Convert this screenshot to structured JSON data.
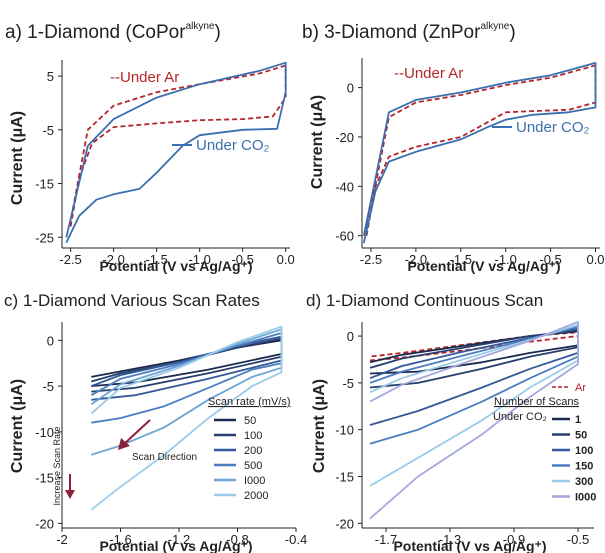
{
  "figure": {
    "colors": {
      "ar": "#b5252b",
      "co2": "#3a6fb0",
      "axis": "#222222",
      "text": "#222222",
      "arrow": "#8e1f3a"
    }
  },
  "chart_data": [
    {
      "id": "a",
      "type": "line",
      "title_prefix": "a) 1-Diamond (CoPor",
      "title_sup": "alkyne",
      "title_suffix": ")",
      "xlabel": "Potential (V vs Ag/Ag⁺)",
      "ylabel": "Current (μA)",
      "xlim": [
        -2.6,
        0.05
      ],
      "ylim": [
        -27,
        8
      ],
      "x_ticks": [
        -2.5,
        -2.0,
        -1.5,
        -1.0,
        -0.5,
        0.0
      ],
      "x_tick_labels": [
        "-2.5",
        "-2.0",
        "-1.5",
        "-1.0",
        "-0.5",
        "0.0"
      ],
      "y_ticks": [
        5,
        -5,
        -15,
        -25
      ],
      "y_tick_labels": [
        "5",
        "-5",
        "-15",
        "-25"
      ],
      "series": [
        {
          "name": "--Under Ar",
          "style": "dashed",
          "color": "#b5252b",
          "x": [
            -2.5,
            -2.4,
            -2.25,
            -2.0,
            -1.5,
            -1.0,
            -0.5,
            -0.15,
            0.0,
            0.0,
            -0.3,
            -1.0,
            -1.5,
            -2.0,
            -2.3,
            -2.5
          ],
          "y": [
            -23,
            -14,
            -7.5,
            -4.5,
            -3.8,
            -3.2,
            -3.0,
            -2.5,
            1,
            7,
            5.5,
            3.5,
            2,
            -0.5,
            -5,
            -22
          ]
        },
        {
          "name": "Under CO₂",
          "style": "solid",
          "color": "#3a6fb0",
          "x": [
            -2.55,
            -2.4,
            -2.2,
            -2.0,
            -1.7,
            -1.5,
            -1.2,
            -1.0,
            -0.5,
            -0.1,
            0.0,
            0.0,
            -0.3,
            -1.0,
            -1.5,
            -2.0,
            -2.3,
            -2.55
          ],
          "y": [
            -26,
            -21,
            -18,
            -17,
            -16,
            -13,
            -8,
            -6,
            -5,
            -4.8,
            2,
            7.5,
            6,
            3.5,
            1,
            -3,
            -8,
            -25
          ]
        }
      ],
      "legend": [
        {
          "label": "--Under Ar",
          "placement": "top-left"
        },
        {
          "label": "Under CO₂",
          "placement": "bottom-right"
        }
      ]
    },
    {
      "id": "b",
      "type": "line",
      "title_prefix": "b) 3-Diamond (ZnPor",
      "title_sup": "alkyne",
      "title_suffix": ")",
      "xlabel": "Potential (V vs Ag/Ag⁺)",
      "ylabel": "Current (μA)",
      "xlim": [
        -2.6,
        0.05
      ],
      "ylim": [
        -65,
        12
      ],
      "x_ticks": [
        -2.5,
        -2.0,
        -1.5,
        -1.0,
        -0.5,
        0.0
      ],
      "x_tick_labels": [
        "-2.5",
        "-2.0",
        "-1.5",
        "-1.0",
        "-0.5",
        "0.0"
      ],
      "y_ticks": [
        0,
        -20,
        -40,
        -60
      ],
      "y_tick_labels": [
        "0",
        "-20",
        "-40",
        "-60"
      ],
      "series": [
        {
          "name": "--Under Ar",
          "style": "dashed",
          "color": "#b5252b",
          "x": [
            -2.55,
            -2.45,
            -2.3,
            -2.0,
            -1.5,
            -1.2,
            -1.0,
            -0.7,
            -0.3,
            0.0,
            0.0,
            -0.5,
            -1.0,
            -1.5,
            -2.0,
            -2.3,
            -2.55
          ],
          "y": [
            -60,
            -40,
            -28,
            -24,
            -20,
            -14,
            -10,
            -9.5,
            -9,
            -6,
            9,
            4,
            1,
            -3,
            -6,
            -12,
            -58
          ]
        },
        {
          "name": "Under CO₂",
          "style": "solid",
          "color": "#3a6fb0",
          "x": [
            -2.58,
            -2.45,
            -2.3,
            -2.0,
            -1.5,
            -1.2,
            -1.0,
            -0.7,
            -0.3,
            0.0,
            0.0,
            -0.5,
            -1.0,
            -1.5,
            -2.0,
            -2.3,
            -2.58
          ],
          "y": [
            -63,
            -42,
            -30,
            -26,
            -21,
            -16,
            -13,
            -11,
            -10,
            -8,
            10,
            5,
            2,
            -2,
            -5,
            -10,
            -60
          ]
        }
      ],
      "legend": [
        {
          "label": "--Under Ar",
          "placement": "top-left"
        },
        {
          "label": "Under CO₂",
          "placement": "right"
        }
      ]
    },
    {
      "id": "c",
      "type": "line",
      "title": "c) 1-Diamond Various Scan Rates",
      "xlabel": "Potential (V vs Ag/Ag⁺)",
      "ylabel": "Current (μA)",
      "xlim": [
        -2.0,
        -0.4
      ],
      "ylim": [
        -20.5,
        2
      ],
      "x_ticks": [
        -2.0,
        -1.6,
        -1.2,
        -0.8,
        -0.4
      ],
      "x_tick_labels": [
        "-2",
        "-1.6",
        "-1.2",
        "-0.8",
        "-0.4"
      ],
      "y_ticks": [
        0,
        -5,
        -10,
        -15,
        -20
      ],
      "y_tick_labels": [
        "0",
        "-5",
        "-10",
        "-15",
        "-20"
      ],
      "legend_title": "Scan rate (mV/s)",
      "annotations": [
        "Increase Scan Rate",
        "Scan Direction"
      ],
      "series": [
        {
          "name": "50",
          "color": "#1a2a4e",
          "x": [
            -1.8,
            -1.5,
            -1.0,
            -0.5,
            -0.5,
            -0.8,
            -1.2,
            -1.6,
            -1.8
          ],
          "y": [
            -5,
            -4.6,
            -3.2,
            -1.5,
            0,
            -0.8,
            -2.2,
            -3.4,
            -4
          ]
        },
        {
          "name": "100",
          "color": "#263f6e",
          "x": [
            -1.8,
            -1.5,
            -1.0,
            -0.5,
            -0.5,
            -0.8,
            -1.2,
            -1.6,
            -1.8
          ],
          "y": [
            -5.6,
            -5.2,
            -3.6,
            -1.8,
            0.2,
            -0.8,
            -2.4,
            -3.6,
            -4.5
          ]
        },
        {
          "name": "200",
          "color": "#34599a",
          "x": [
            -1.8,
            -1.5,
            -1.0,
            -0.5,
            -0.5,
            -0.8,
            -1.2,
            -1.6,
            -1.8
          ],
          "y": [
            -6.5,
            -6.0,
            -4.2,
            -2.2,
            0.4,
            -0.6,
            -2.4,
            -3.8,
            -5
          ]
        },
        {
          "name": "500",
          "color": "#4a7ec1",
          "x": [
            -1.8,
            -1.6,
            -1.3,
            -1.0,
            -0.7,
            -0.5,
            -0.5,
            -0.8,
            -1.2,
            -1.6,
            -1.8
          ],
          "y": [
            -9,
            -8.5,
            -7.2,
            -5.2,
            -3.2,
            -2.5,
            0.8,
            -0.6,
            -2.6,
            -4.2,
            -6
          ]
        },
        {
          "name": "I000",
          "color": "#6da5d6",
          "x": [
            -1.8,
            -1.6,
            -1.3,
            -1.0,
            -0.7,
            -0.5,
            -0.5,
            -0.8,
            -1.2,
            -1.6,
            -1.8
          ],
          "y": [
            -12.5,
            -11.5,
            -9.5,
            -6.5,
            -4,
            -3,
            1.2,
            -0.4,
            -2.8,
            -4.8,
            -7
          ]
        },
        {
          "name": "2000",
          "color": "#9acbe8",
          "x": [
            -1.8,
            -1.6,
            -1.3,
            -1.0,
            -0.7,
            -0.5,
            -0.5,
            -0.8,
            -1.2,
            -1.6,
            -1.8
          ],
          "y": [
            -18.5,
            -16,
            -12.5,
            -8.5,
            -5,
            -3.5,
            1.5,
            -0.2,
            -3,
            -5.2,
            -8
          ]
        }
      ]
    },
    {
      "id": "d",
      "type": "line",
      "title": "d) 1-Diamond Continuous Scan",
      "xlabel": "Potential (V vs Ag/Ag⁺)",
      "ylabel": "Current (μA)",
      "xlim": [
        -1.85,
        -0.4
      ],
      "ylim": [
        -20.5,
        1.5
      ],
      "x_ticks": [
        -1.7,
        -1.3,
        -0.9,
        -0.5
      ],
      "x_tick_labels": [
        "-1.7",
        "-1.3",
        "-0.9",
        "-0.5"
      ],
      "y_ticks": [
        0,
        -5,
        -10,
        -15,
        -20
      ],
      "y_tick_labels": [
        "0",
        "-5",
        "-10",
        "-15",
        "-20"
      ],
      "legend_title": "Number of Scans",
      "legend_row_label": "Under CO₂",
      "series": [
        {
          "name": "Ar",
          "style": "dashed",
          "color": "#b5252b",
          "x": [
            -1.8,
            -1.6,
            -1.2,
            -0.8,
            -0.5,
            -0.5,
            -0.8,
            -1.2,
            -1.6,
            -1.8
          ],
          "y": [
            -2.6,
            -2.3,
            -1.5,
            -0.6,
            0,
            0.4,
            0,
            -0.9,
            -1.8,
            -2.2
          ]
        },
        {
          "name": "1",
          "color": "#1a2a4e",
          "x": [
            -1.8,
            -1.5,
            -1.1,
            -0.8,
            -0.5,
            -0.5,
            -0.8,
            -1.2,
            -1.6,
            -1.8
          ],
          "y": [
            -4,
            -3.8,
            -2.8,
            -1.8,
            -1,
            0.5,
            0,
            -1,
            -2,
            -2.8
          ]
        },
        {
          "name": "50",
          "color": "#263f6e",
          "x": [
            -1.8,
            -1.5,
            -1.1,
            -0.8,
            -0.5,
            -0.5,
            -0.8,
            -1.2,
            -1.6,
            -1.8
          ],
          "y": [
            -5.5,
            -5,
            -3.5,
            -2.2,
            -1.2,
            0.6,
            0,
            -1.2,
            -2.4,
            -3.4
          ]
        },
        {
          "name": "100",
          "color": "#34599a",
          "x": [
            -1.8,
            -1.5,
            -1.1,
            -0.8,
            -0.5,
            -0.5,
            -0.8,
            -1.2,
            -1.6,
            -1.8
          ],
          "y": [
            -9.5,
            -8,
            -5.5,
            -3.5,
            -1.8,
            0.8,
            -0.2,
            -1.6,
            -3.2,
            -4.5
          ]
        },
        {
          "name": "150",
          "color": "#4a7ec1",
          "x": [
            -1.8,
            -1.5,
            -1.1,
            -0.8,
            -0.5,
            -0.5,
            -0.8,
            -1.2,
            -1.6,
            -1.8
          ],
          "y": [
            -11.5,
            -10,
            -7,
            -4.5,
            -2.2,
            1.0,
            -0.3,
            -2,
            -3.8,
            -5
          ]
        },
        {
          "name": "300",
          "color": "#9acbe8",
          "x": [
            -1.8,
            -1.5,
            -1.1,
            -0.8,
            -0.5,
            -0.5,
            -0.8,
            -1.2,
            -1.6,
            -1.8
          ],
          "y": [
            -16,
            -13,
            -9,
            -5.5,
            -2.6,
            1.2,
            -0.4,
            -2.4,
            -4.5,
            -6
          ]
        },
        {
          "name": "I000",
          "color": "#a3a8dc",
          "x": [
            -1.8,
            -1.5,
            -1.1,
            -0.8,
            -0.5,
            -0.5,
            -0.8,
            -1.2,
            -1.6,
            -1.8
          ],
          "y": [
            -19.5,
            -15,
            -10.5,
            -6.5,
            -3,
            1.5,
            -0.5,
            -2.8,
            -5.2,
            -7
          ]
        }
      ]
    }
  ]
}
